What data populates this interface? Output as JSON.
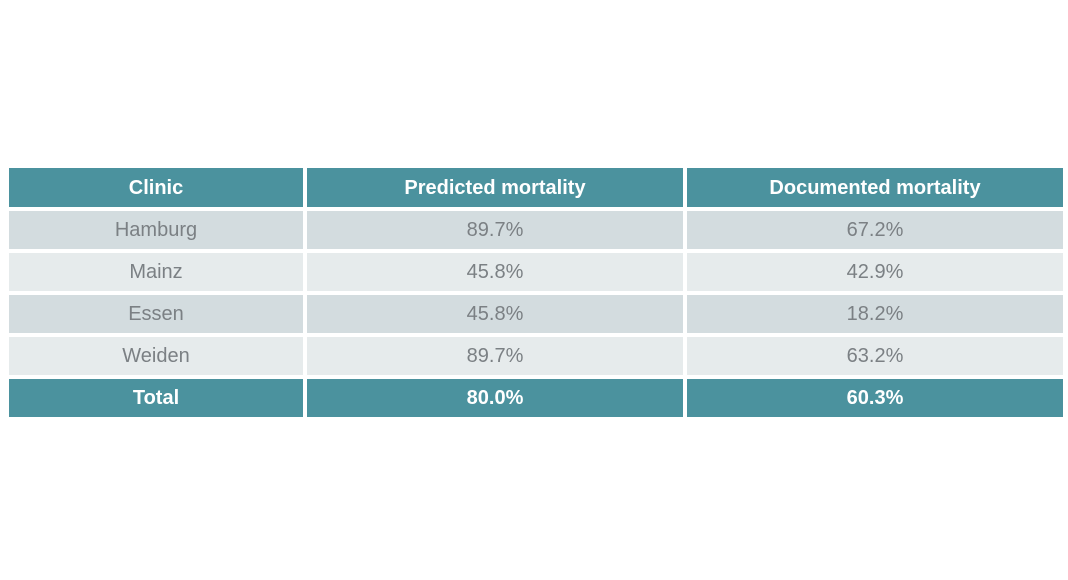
{
  "chart_data": {
    "type": "table",
    "title": "",
    "columns": [
      "Clinic",
      "Predicted mortality",
      "Documented mortality"
    ],
    "rows": [
      {
        "cells": [
          "Hamburg",
          "89.7%",
          "67.2%"
        ]
      },
      {
        "cells": [
          "Mainz",
          "45.8%",
          "42.9%"
        ]
      },
      {
        "cells": [
          "Essen",
          "45.8%",
          "18.2%"
        ]
      },
      {
        "cells": [
          "Weiden",
          "89.7%",
          "63.2%"
        ]
      }
    ],
    "total_row": {
      "cells": [
        "Total",
        "80.0%",
        "60.3%"
      ]
    }
  },
  "colors": {
    "header_bg": "#4b929e",
    "total_bg": "#4b929e",
    "row_dark_bg": "#d3dcdf",
    "row_light_bg": "#e6ebec",
    "header_text": "#ffffff",
    "data_text": "#7b8084",
    "page_bg": "#ffffff"
  }
}
